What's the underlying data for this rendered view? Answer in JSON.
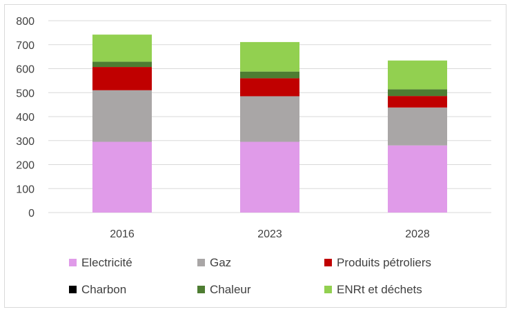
{
  "chart_data": {
    "type": "bar",
    "stacked": true,
    "categories": [
      "2016",
      "2023",
      "2028"
    ],
    "ylim": [
      0,
      800
    ],
    "yticks": [
      0,
      100,
      200,
      300,
      400,
      500,
      600,
      700,
      800
    ],
    "grid": true,
    "legend_position": "bottom",
    "series": [
      {
        "name": "Electricité",
        "color": "#e09be9",
        "values": [
          295,
          295,
          280
        ]
      },
      {
        "name": "Gaz",
        "color": "#a9a6a6",
        "values": [
          215,
          190,
          158
        ]
      },
      {
        "name": "Produits pétroliers",
        "color": "#c00000",
        "values": [
          97,
          75,
          48
        ]
      },
      {
        "name": "Charbon",
        "color": "#000000",
        "values": [
          0,
          0,
          0
        ]
      },
      {
        "name": "Chaleur",
        "color": "#4e7d32",
        "values": [
          22,
          28,
          28
        ]
      },
      {
        "name": "ENRt et déchets",
        "color": "#92d050",
        "values": [
          113,
          123,
          120
        ]
      }
    ]
  }
}
